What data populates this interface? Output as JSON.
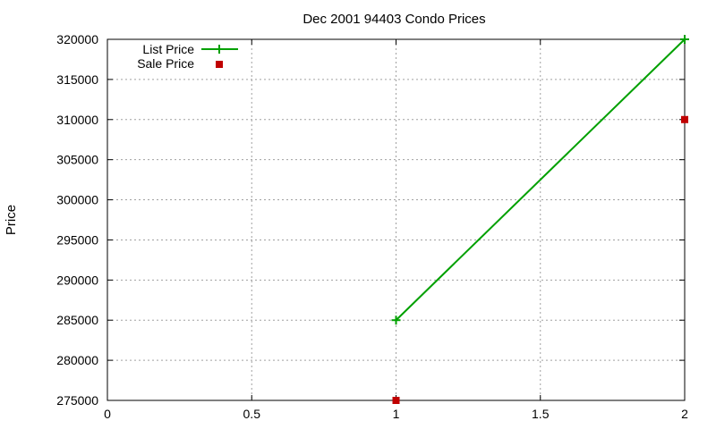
{
  "chart_data": {
    "type": "line",
    "title": "Dec 2001 94403 Condo Prices",
    "xlabel": "",
    "ylabel": "Price",
    "xlim": [
      0,
      2
    ],
    "ylim": [
      275000,
      320000
    ],
    "x_ticks": [
      0,
      0.5,
      1,
      1.5,
      2
    ],
    "x_tick_labels": [
      "0",
      "0.5",
      "1",
      "1.5",
      "2"
    ],
    "y_ticks": [
      275000,
      280000,
      285000,
      290000,
      295000,
      300000,
      305000,
      310000,
      315000,
      320000
    ],
    "y_tick_labels": [
      "275000",
      "280000",
      "285000",
      "290000",
      "295000",
      "300000",
      "305000",
      "310000",
      "315000",
      "320000"
    ],
    "grid": true,
    "legend_position": "top-left",
    "series": [
      {
        "name": "List Price",
        "style": "linespoints",
        "marker": "plus",
        "color": "#00a000",
        "x": [
          1,
          2
        ],
        "y": [
          285000,
          320000
        ]
      },
      {
        "name": "Sale Price",
        "style": "points",
        "marker": "square",
        "color": "#c00000",
        "x": [
          1,
          2
        ],
        "y": [
          275000,
          310000
        ]
      }
    ]
  }
}
